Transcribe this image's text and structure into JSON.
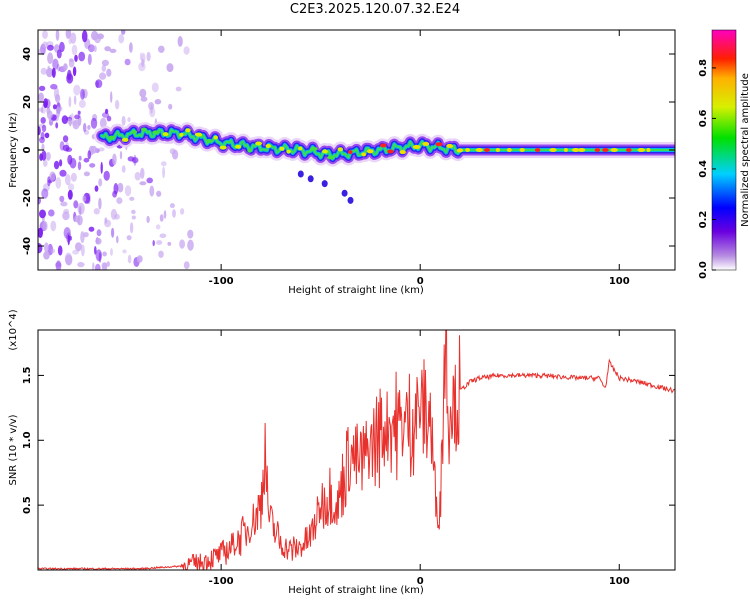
{
  "title": "C2E3.2025.120.07.32.E24",
  "colors": {
    "snr_line": "#e8302c",
    "axis": "#000000"
  },
  "chart_data": [
    {
      "type": "heatmap",
      "xlabel": "Height of straight line (km)",
      "ylabel": "Frequency (Hz)",
      "xlim": [
        -192,
        128
      ],
      "ylim": [
        -50,
        50
      ],
      "xticks": [
        -100,
        0,
        100
      ],
      "yticks": [
        -40,
        -20,
        0,
        20,
        40
      ],
      "colorbar": {
        "label": "Normalized spectral amplitude",
        "range": [
          0.0,
          0.95
        ],
        "ticks": [
          0.0,
          0.2,
          0.4,
          0.6,
          0.8
        ],
        "colormap": "rainbow (white → purple → blue → cyan → green → yellow → red → magenta)"
      },
      "ridge": {
        "description": "dominant frequency track vs height",
        "points": [
          [
            -160,
            5
          ],
          [
            -140,
            7
          ],
          [
            -120,
            7
          ],
          [
            -100,
            3
          ],
          [
            -80,
            1
          ],
          [
            -60,
            0
          ],
          [
            -45,
            -2
          ],
          [
            -30,
            -1
          ],
          [
            -10,
            1
          ],
          [
            0,
            2
          ],
          [
            20,
            0
          ],
          [
            60,
            0
          ],
          [
            100,
            0
          ],
          [
            128,
            0
          ]
        ]
      },
      "noise_region_x": [
        -192,
        -115
      ]
    },
    {
      "type": "line",
      "xlabel": "Height of straight line (km)",
      "ylabel": "SNR (10 * v/v)",
      "y_multiplier": "(x10^4)",
      "xlim": [
        -192,
        128
      ],
      "ylim": [
        0,
        1.85
      ],
      "xticks": [
        -100,
        0,
        100
      ],
      "yticks": [
        0.5,
        1.0,
        1.5
      ],
      "series": [
        {
          "x": [
            -192,
            -160,
            -140,
            -120,
            -110,
            -100,
            -95,
            -90,
            -85,
            -80,
            -78,
            -76,
            -70,
            -65,
            -60,
            -55,
            -50,
            -45,
            -42,
            -38,
            -35,
            -30,
            -25,
            -20,
            -15,
            -10,
            -5,
            0,
            5,
            8,
            10,
            12,
            13,
            14,
            16,
            18,
            20,
            25,
            30,
            40,
            50,
            60,
            70,
            80,
            90,
            93,
            95,
            100,
            110,
            120,
            128
          ],
          "y": [
            0.01,
            0.01,
            0.01,
            0.03,
            0.06,
            0.12,
            0.18,
            0.25,
            0.35,
            0.5,
            0.95,
            0.4,
            0.2,
            0.15,
            0.18,
            0.25,
            0.5,
            0.6,
            0.45,
            0.75,
            0.9,
            0.8,
            0.95,
            1.05,
            1.15,
            1.1,
            1.15,
            1.25,
            1.2,
            0.5,
            0.45,
            1.6,
            1.85,
            1.25,
            1.35,
            1.25,
            1.38,
            1.45,
            1.48,
            1.5,
            1.5,
            1.5,
            1.49,
            1.48,
            1.48,
            1.4,
            1.6,
            1.48,
            1.45,
            1.41,
            1.38
          ]
        }
      ]
    }
  ]
}
